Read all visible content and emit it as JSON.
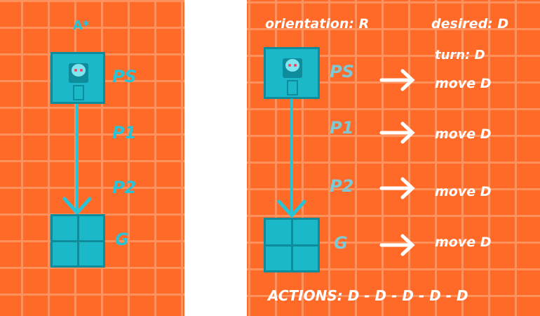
{
  "left": {
    "title": "A*",
    "nodes": [
      "PS",
      "P1",
      "P2",
      "G"
    ]
  },
  "right": {
    "orientation_label": "orientation: R",
    "desired_label": "desired: D",
    "nodes": [
      "PS",
      "P1",
      "P2",
      "G"
    ],
    "steps": [
      "turn: D",
      "move D",
      "move D",
      "move D",
      "move D"
    ],
    "actions_label": "ACTIONS: D - D - D - D - D"
  },
  "colors": {
    "grid_fill": "#ff6a28",
    "grid_line": "#ff915c",
    "cell": "#1ab8c8",
    "label": "#27c4d8"
  },
  "icons": [
    "robot-icon",
    "down-arrow-icon",
    "right-arrow-icon"
  ]
}
